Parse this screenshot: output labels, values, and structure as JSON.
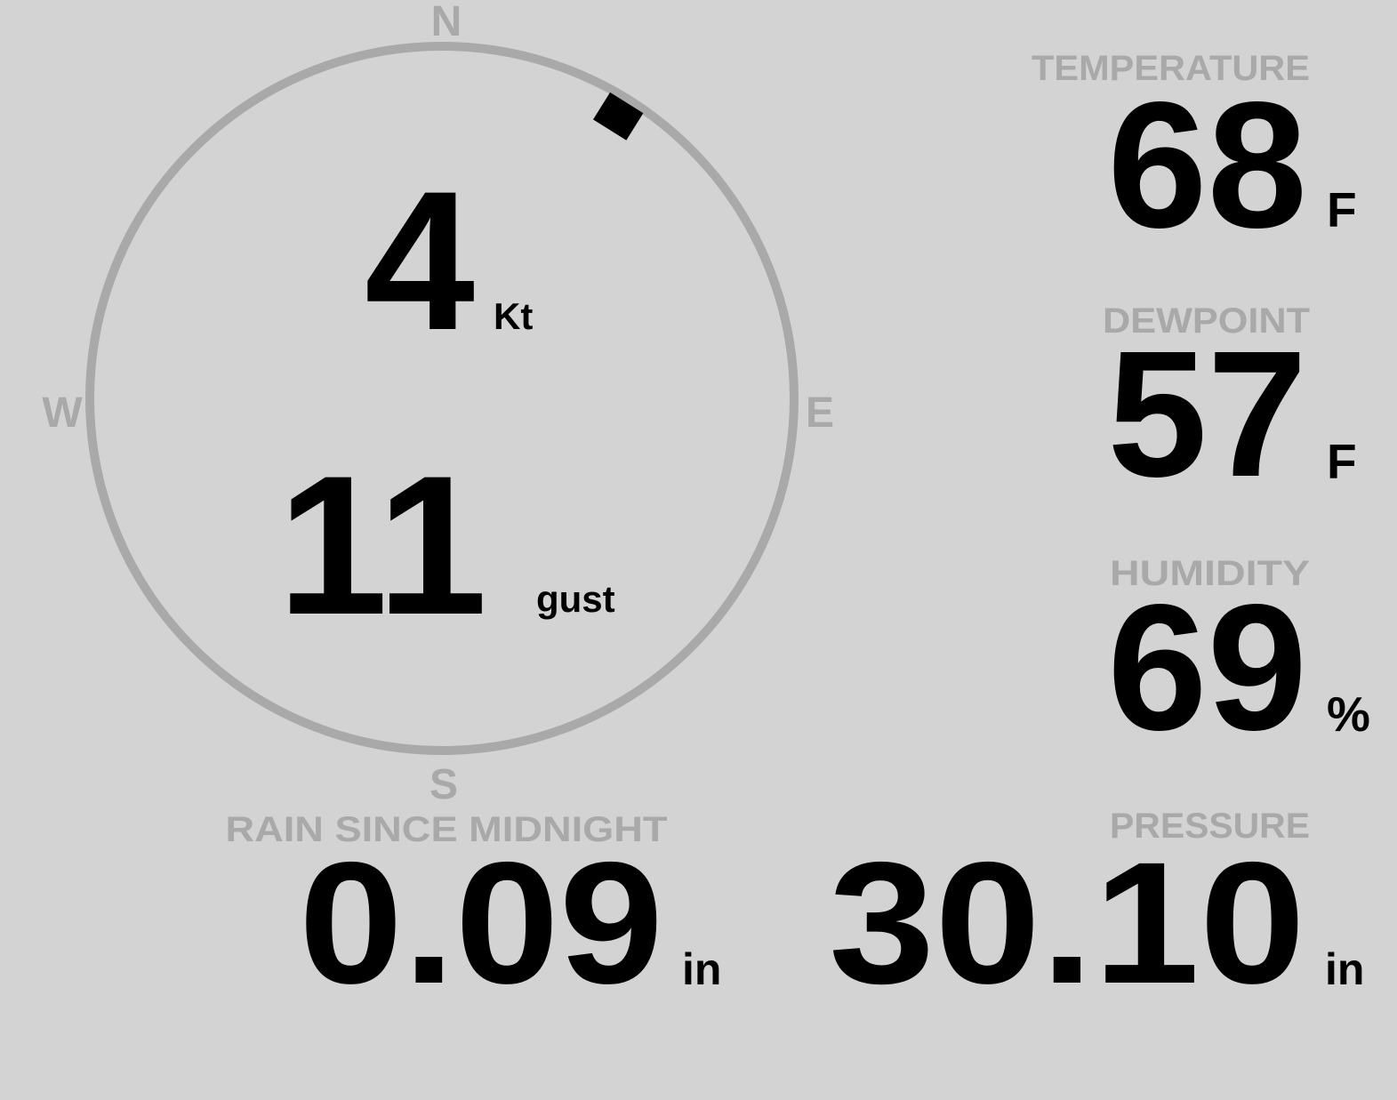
{
  "wind": {
    "speed": "4",
    "speed_unit": "Kt",
    "gust": "11",
    "gust_unit": "gust",
    "direction_degrees": 32,
    "compass": {
      "n": "N",
      "e": "E",
      "s": "S",
      "w": "W"
    }
  },
  "temperature": {
    "label": "TEMPERATURE",
    "value": "68",
    "unit": "F"
  },
  "dewpoint": {
    "label": "DEWPOINT",
    "value": "57",
    "unit": "F"
  },
  "humidity": {
    "label": "HUMIDITY",
    "value": "69",
    "unit": "%"
  },
  "rain": {
    "label": "RAIN SINCE MIDNIGHT",
    "value": "0.09",
    "unit": "in"
  },
  "pressure": {
    "label": "PRESSURE",
    "value": "30.10",
    "unit": "in"
  },
  "colors": {
    "background": "#d3d3d3",
    "label": "#a9a9a9",
    "value": "#000000"
  }
}
